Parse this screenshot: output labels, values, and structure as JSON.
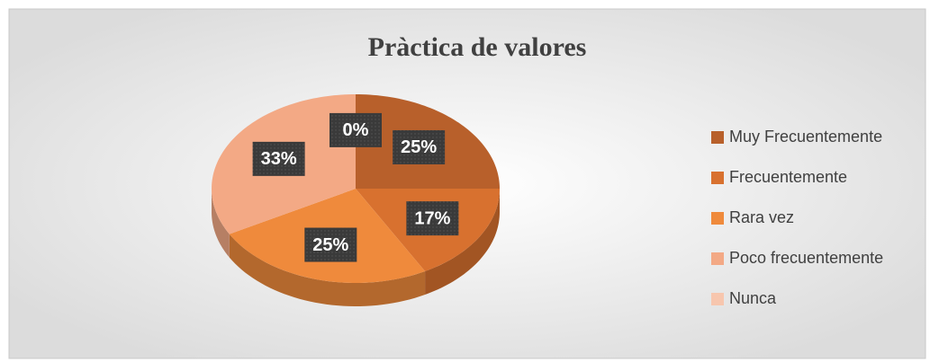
{
  "chart_data": {
    "type": "pie",
    "title": "Pràctica de valores",
    "categories": [
      "Muy Frecuentemente",
      "Frecuentemente",
      "Rara vez",
      "Poco frecuentemente",
      "Nunca"
    ],
    "values": [
      25,
      17,
      25,
      33,
      0
    ],
    "value_labels": [
      "25%",
      "17%",
      "25%",
      "33%",
      "0%"
    ],
    "colors": [
      "#b8602b",
      "#d8712f",
      "#ef8a3c",
      "#f3a985",
      "#f7c6ae"
    ],
    "legend": "right"
  }
}
